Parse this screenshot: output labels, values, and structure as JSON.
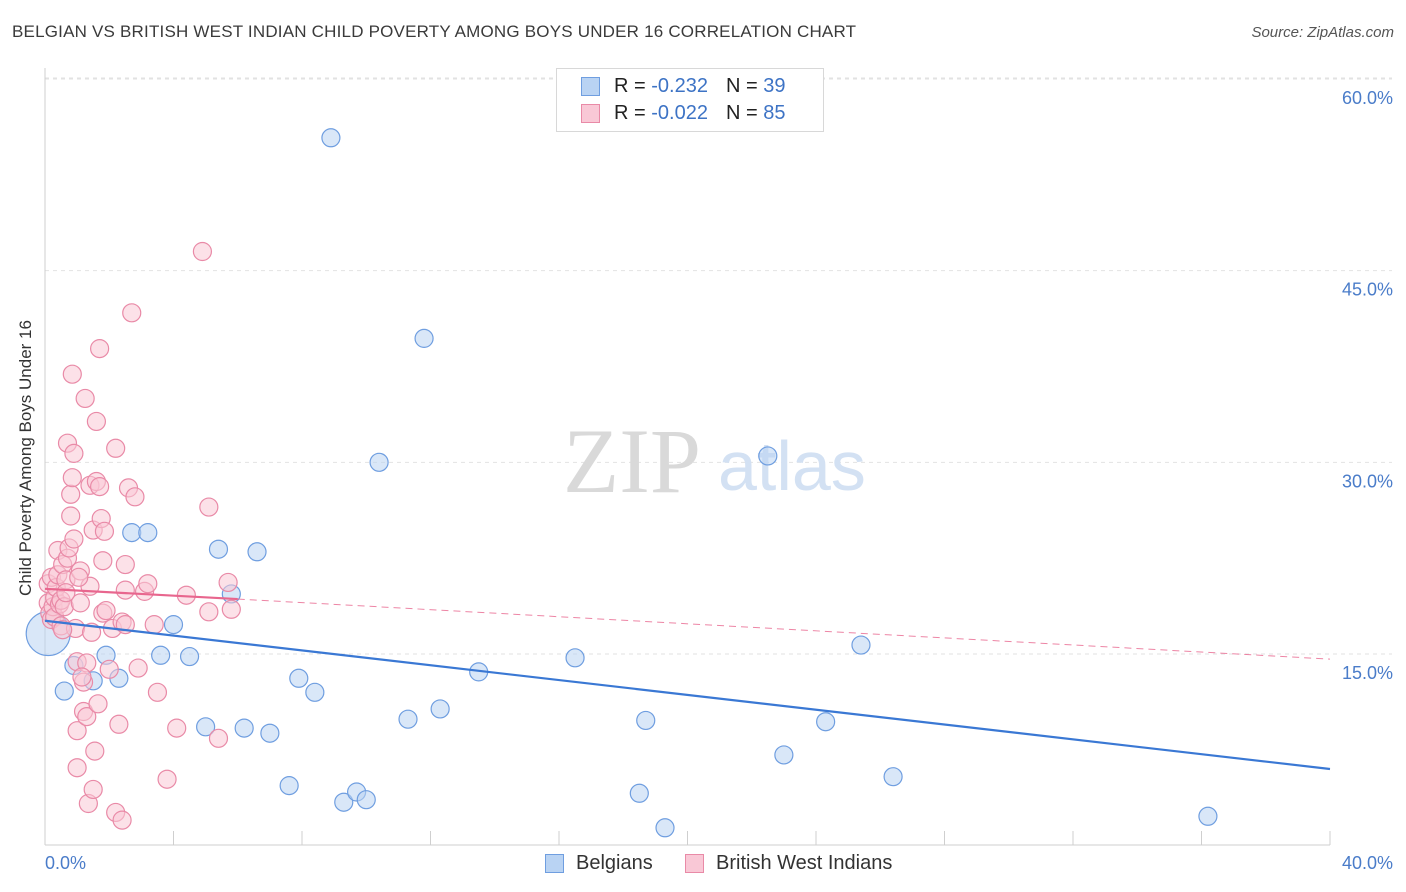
{
  "title": "BELGIAN VS BRITISH WEST INDIAN CHILD POVERTY AMONG BOYS UNDER 16 CORRELATION CHART",
  "source": "Source: ZipAtlas.com",
  "watermark": {
    "zip": "ZIP",
    "atlas": "atlas"
  },
  "legend": {
    "r_label": "R =",
    "n_label": "N =",
    "series": [
      {
        "name": "Belgians",
        "r": "-0.232",
        "n": "39",
        "fill": "#b9d3f3",
        "stroke": "#6f9ee0"
      },
      {
        "name": "British West Indians",
        "r": "-0.022",
        "n": "85",
        "fill": "#f9c8d6",
        "stroke": "#e98aa7"
      }
    ]
  },
  "chart_data": {
    "type": "scatter",
    "title": "BELGIAN VS BRITISH WEST INDIAN CHILD POVERTY AMONG BOYS UNDER 16 CORRELATION CHART",
    "xlabel": "",
    "ylabel": "Child Poverty Among Boys Under 16",
    "xlim": [
      0,
      40
    ],
    "ylim": [
      0,
      62
    ],
    "x_tick_labels": [
      "0.0%",
      "40.0%"
    ],
    "y_ticks": [
      15,
      30,
      45,
      60
    ],
    "y_tick_labels": [
      "15.0%",
      "30.0%",
      "45.0%",
      "60.0%"
    ],
    "grid": true,
    "series": [
      {
        "name": "Belgians",
        "color": "#6f9ee0",
        "trend": {
          "x0": 0,
          "y0": 17.6,
          "x1": 40,
          "y1": 6.0,
          "style": "solid",
          "color": "#3a78d4"
        },
        "points": [
          [
            0.1,
            16.6
          ],
          [
            0.6,
            12.1
          ],
          [
            0.9,
            14.1
          ],
          [
            1.5,
            12.9
          ],
          [
            1.9,
            14.9
          ],
          [
            2.3,
            13.1
          ],
          [
            2.7,
            24.5
          ],
          [
            3.2,
            24.5
          ],
          [
            3.6,
            14.9
          ],
          [
            4.0,
            17.3
          ],
          [
            4.5,
            14.8
          ],
          [
            5.0,
            9.3
          ],
          [
            5.4,
            23.2
          ],
          [
            5.8,
            19.7
          ],
          [
            6.2,
            9.2
          ],
          [
            6.6,
            23.0
          ],
          [
            7.0,
            8.8
          ],
          [
            7.6,
            4.7
          ],
          [
            7.9,
            13.1
          ],
          [
            8.4,
            12.0
          ],
          [
            8.9,
            55.4
          ],
          [
            9.3,
            3.4
          ],
          [
            9.7,
            4.2
          ],
          [
            10.0,
            3.6
          ],
          [
            10.4,
            30.0
          ],
          [
            11.3,
            9.9
          ],
          [
            11.8,
            39.7
          ],
          [
            12.3,
            10.7
          ],
          [
            13.5,
            13.6
          ],
          [
            16.5,
            14.7
          ],
          [
            18.5,
            4.1
          ],
          [
            18.7,
            9.8
          ],
          [
            19.3,
            1.4
          ],
          [
            22.5,
            30.5
          ],
          [
            23.0,
            7.1
          ],
          [
            24.3,
            9.7
          ],
          [
            25.4,
            15.7
          ],
          [
            26.4,
            5.4
          ],
          [
            36.2,
            2.3
          ]
        ]
      },
      {
        "name": "British West Indians",
        "color": "#e98aa7",
        "trend": {
          "x0": 0,
          "y0": 20.1,
          "x1": 6.0,
          "y1": 19.3,
          "x2": 40,
          "y2": 14.6,
          "style": "solid-then-dashed",
          "color": "#e8668e"
        },
        "points": [
          [
            0.1,
            20.5
          ],
          [
            0.1,
            19.0
          ],
          [
            0.15,
            18.2
          ],
          [
            0.2,
            17.7
          ],
          [
            0.2,
            21.0
          ],
          [
            0.25,
            18.7
          ],
          [
            0.3,
            19.4
          ],
          [
            0.3,
            17.9
          ],
          [
            0.35,
            20.2
          ],
          [
            0.4,
            23.1
          ],
          [
            0.4,
            21.2
          ],
          [
            0.45,
            18.9
          ],
          [
            0.5,
            19.2
          ],
          [
            0.5,
            17.2
          ],
          [
            0.55,
            22.0
          ],
          [
            0.6,
            18.7
          ],
          [
            0.65,
            20.8
          ],
          [
            0.7,
            22.5
          ],
          [
            0.7,
            31.5
          ],
          [
            0.75,
            23.3
          ],
          [
            0.8,
            27.5
          ],
          [
            0.8,
            25.8
          ],
          [
            0.85,
            28.8
          ],
          [
            0.85,
            36.9
          ],
          [
            0.9,
            30.7
          ],
          [
            0.9,
            24.0
          ],
          [
            0.95,
            17.0
          ],
          [
            1.0,
            14.4
          ],
          [
            1.0,
            9.0
          ],
          [
            1.0,
            6.1
          ],
          [
            1.1,
            21.5
          ],
          [
            1.1,
            19.0
          ],
          [
            1.2,
            12.8
          ],
          [
            1.2,
            10.5
          ],
          [
            1.25,
            35.0
          ],
          [
            1.3,
            14.3
          ],
          [
            1.3,
            10.1
          ],
          [
            1.35,
            3.3
          ],
          [
            1.4,
            28.2
          ],
          [
            1.4,
            20.3
          ],
          [
            1.45,
            16.7
          ],
          [
            1.5,
            24.7
          ],
          [
            1.5,
            4.4
          ],
          [
            1.55,
            7.4
          ],
          [
            1.6,
            33.2
          ],
          [
            1.6,
            28.5
          ],
          [
            1.65,
            11.1
          ],
          [
            1.7,
            38.9
          ],
          [
            1.7,
            28.1
          ],
          [
            1.75,
            25.6
          ],
          [
            1.8,
            22.3
          ],
          [
            1.8,
            18.2
          ],
          [
            1.85,
            24.6
          ],
          [
            1.9,
            18.4
          ],
          [
            2.0,
            13.8
          ],
          [
            2.1,
            17.0
          ],
          [
            2.2,
            31.1
          ],
          [
            2.2,
            2.6
          ],
          [
            2.3,
            9.5
          ],
          [
            2.4,
            2.0
          ],
          [
            2.4,
            17.5
          ],
          [
            2.5,
            17.3
          ],
          [
            2.5,
            22.0
          ],
          [
            2.5,
            20.0
          ],
          [
            2.6,
            28.0
          ],
          [
            2.7,
            41.7
          ],
          [
            2.8,
            27.3
          ],
          [
            2.9,
            13.9
          ],
          [
            3.1,
            19.9
          ],
          [
            3.2,
            20.5
          ],
          [
            3.4,
            17.3
          ],
          [
            3.5,
            12.0
          ],
          [
            3.8,
            5.2
          ],
          [
            4.1,
            9.2
          ],
          [
            4.4,
            19.6
          ],
          [
            4.9,
            46.5
          ],
          [
            5.1,
            26.5
          ],
          [
            5.1,
            18.3
          ],
          [
            5.4,
            8.4
          ],
          [
            5.7,
            20.6
          ],
          [
            5.8,
            18.5
          ],
          [
            1.05,
            21.0
          ],
          [
            0.65,
            19.8
          ],
          [
            1.15,
            13.2
          ],
          [
            0.55,
            16.9
          ]
        ]
      }
    ]
  }
}
